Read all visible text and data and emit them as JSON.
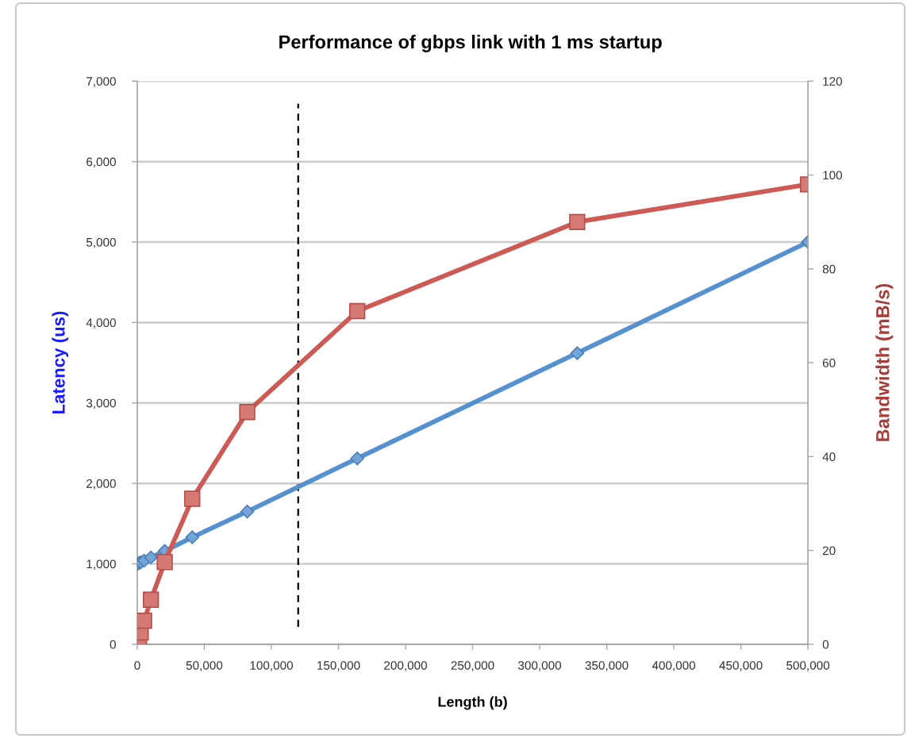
{
  "chart_data": {
    "type": "line",
    "title": "Performance of gbps link with 1 ms startup",
    "xlabel": "Length (b)",
    "ylabel": "Latency (us)",
    "y2label": "Bandwidth (mB/s)",
    "x": [
      0,
      1300,
      2600,
      5100,
      10200,
      20500,
      41000,
      82000,
      164000,
      328000,
      500000
    ],
    "series": [
      {
        "color": "#5590d0",
        "marker": "diamond",
        "line_style": "solid",
        "values": [
          1000,
          1010,
          1020,
          1040,
          1080,
          1160,
          1330,
          1650,
          2310,
          3620,
          5000
        ]
      },
      {
        "color": "#cd5a55",
        "marker": "square",
        "line_style": "solid",
        "axis": "y2",
        "values": [
          0,
          1,
          2.5,
          5,
          9.5,
          17.5,
          31,
          49.5,
          71,
          90,
          98
        ]
      }
    ],
    "xlim": [
      0,
      500000
    ],
    "xticks": [
      0,
      {
        "value": 50000,
        "label": "50,000"
      },
      {
        "value": 100000,
        "label": "100,000"
      },
      {
        "value": 150000,
        "label": "150,000"
      },
      {
        "value": 200000,
        "label": "200,000"
      },
      {
        "value": 250000,
        "label": "250,000"
      },
      {
        "value": 300000,
        "label": "300,000"
      },
      {
        "value": 350000,
        "label": "350,000"
      },
      {
        "value": 400000,
        "label": "400,000"
      },
      {
        "value": 450000,
        "label": "450,000"
      },
      {
        "value": 500000,
        "label": "500,000"
      }
    ],
    "ylim": [
      0,
      7000
    ],
    "yticks": [
      0,
      {
        "value": 1000,
        "label": "1,000"
      },
      {
        "value": 2000,
        "label": "2,000"
      },
      {
        "value": 3000,
        "label": "3,000"
      },
      {
        "value": 4000,
        "label": "4,000"
      },
      {
        "value": 5000,
        "label": "5,000"
      },
      {
        "value": 6000,
        "label": "6,000"
      },
      {
        "value": 7000,
        "label": "7,000"
      }
    ],
    "y2lim": [
      0,
      120
    ],
    "y2ticks": [
      0,
      20,
      40,
      60,
      80,
      100,
      120
    ],
    "ref_lines": [
      {
        "axis": "x",
        "value": 120000,
        "color": "#000000",
        "line_style": "dashed"
      }
    ],
    "grid": "y"
  }
}
